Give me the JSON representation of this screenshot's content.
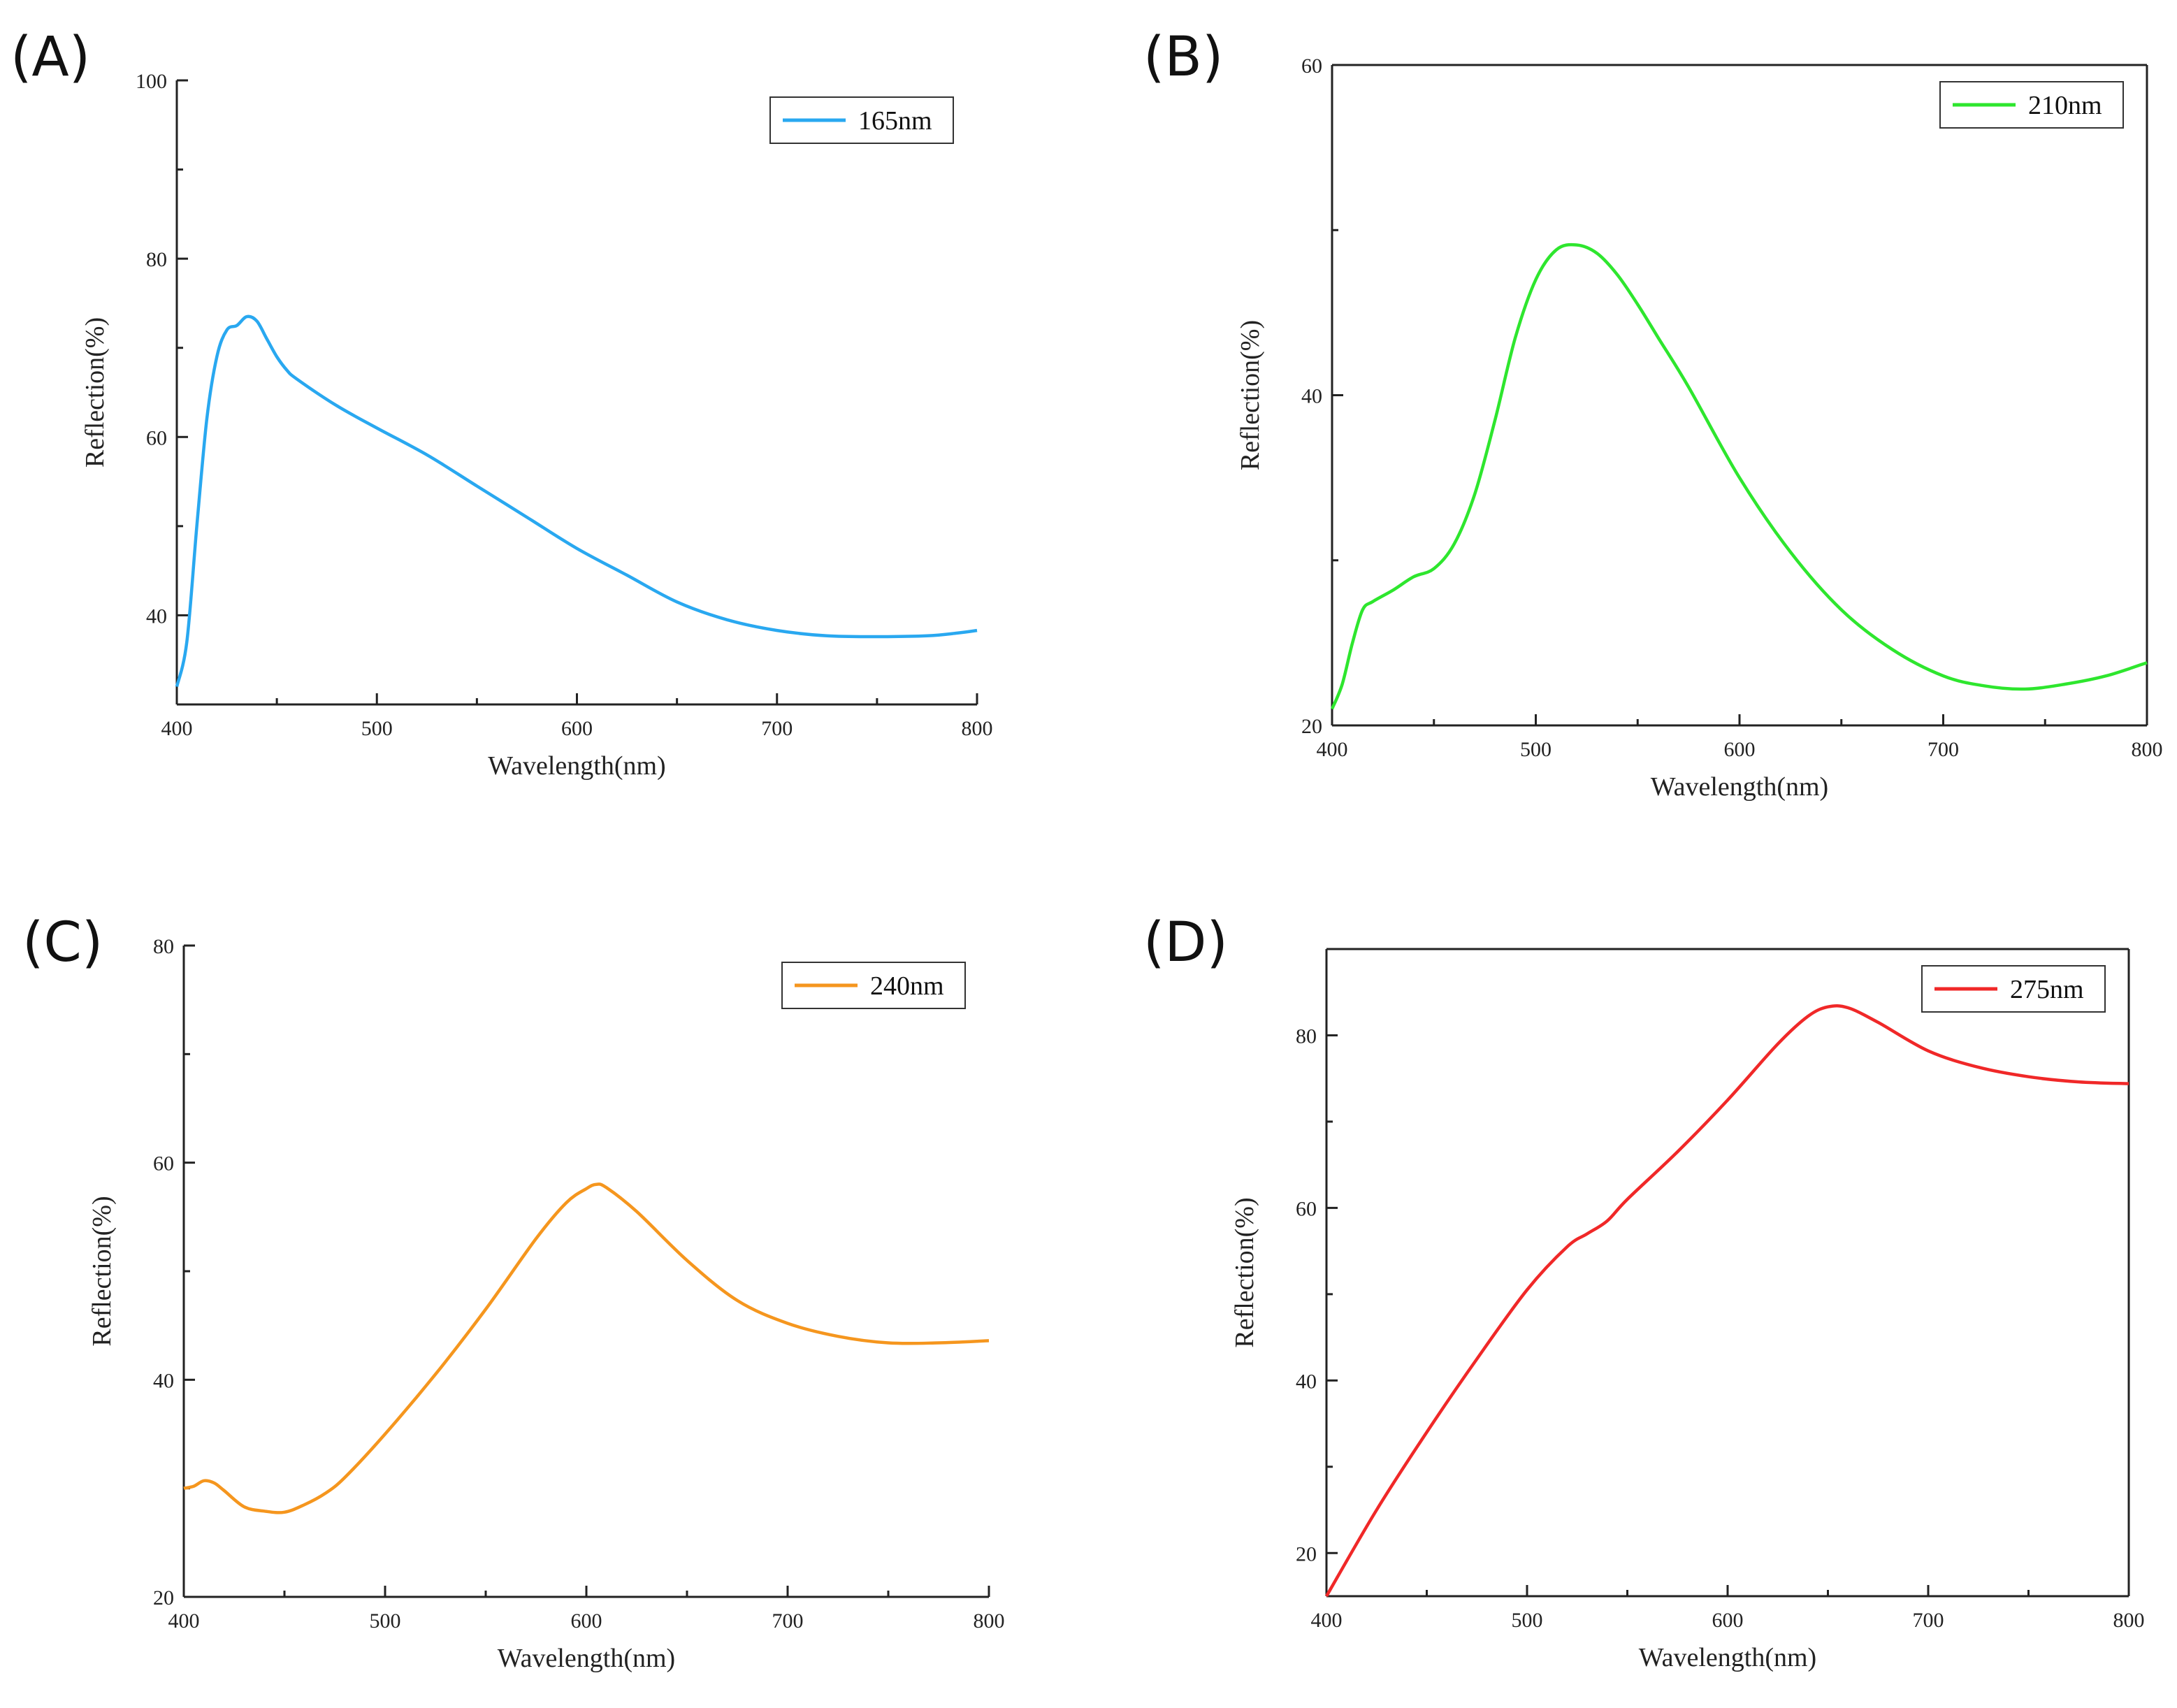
{
  "chart_data": [
    {
      "id": "A",
      "panel_label": "(A)",
      "type": "line",
      "xlabel": "Wavelength(nm)",
      "ylabel": "Reflection(%)",
      "xlim": [
        400,
        800
      ],
      "ylim": [
        30,
        100
      ],
      "xticks": [
        400,
        500,
        600,
        700,
        800
      ],
      "yticks": [
        40,
        60,
        80,
        100
      ],
      "legend_position": "top-right",
      "series": [
        {
          "name": "165nm",
          "color": "#29a8f0",
          "x": [
            400,
            405,
            410,
            415,
            420,
            425,
            430,
            435,
            440,
            445,
            450,
            455,
            460,
            480,
            500,
            525,
            550,
            575,
            600,
            625,
            650,
            675,
            700,
            725,
            750,
            775,
            790,
            800
          ],
          "y": [
            32,
            37,
            50,
            62,
            69,
            72,
            72.5,
            73.5,
            73,
            71,
            69,
            67.5,
            66.5,
            63.5,
            61,
            58,
            54.5,
            51,
            47.5,
            44.5,
            41.5,
            39.5,
            38.3,
            37.7,
            37.6,
            37.7,
            38,
            38.3
          ]
        }
      ]
    },
    {
      "id": "B",
      "panel_label": "(B)",
      "type": "line",
      "xlabel": "Wavelength(nm)",
      "ylabel": "Reflection(%)",
      "xlim": [
        400,
        800
      ],
      "ylim": [
        20,
        60
      ],
      "xticks": [
        400,
        500,
        600,
        700,
        800
      ],
      "yticks": [
        20,
        40,
        60
      ],
      "legend_position": "top-right",
      "series": [
        {
          "name": "210nm",
          "color": "#2ee62e",
          "x": [
            400,
            405,
            410,
            415,
            420,
            430,
            440,
            450,
            460,
            470,
            480,
            490,
            500,
            510,
            520,
            530,
            540,
            550,
            560,
            575,
            600,
            625,
            650,
            675,
            700,
            720,
            740,
            760,
            780,
            800
          ],
          "y": [
            21,
            22.5,
            25,
            27,
            27.5,
            28.2,
            29,
            29.5,
            31,
            34,
            38.5,
            43.5,
            47,
            48.8,
            49.1,
            48.6,
            47.3,
            45.5,
            43.5,
            40.5,
            35,
            30.5,
            27,
            24.6,
            23,
            22.4,
            22.2,
            22.5,
            23,
            23.8
          ]
        }
      ]
    },
    {
      "id": "C",
      "panel_label": "(C)",
      "type": "line",
      "xlabel": "Wavelength(nm)",
      "ylabel": "Reflection(%)",
      "xlim": [
        400,
        800
      ],
      "ylim": [
        20,
        80
      ],
      "xticks": [
        400,
        500,
        600,
        700,
        800
      ],
      "yticks": [
        20,
        40,
        60,
        80
      ],
      "legend_position": "top-right",
      "series": [
        {
          "name": "240nm",
          "color": "#f5961e",
          "x": [
            400,
            405,
            410,
            415,
            420,
            430,
            440,
            450,
            460,
            470,
            480,
            500,
            525,
            550,
            575,
            590,
            600,
            605,
            610,
            625,
            650,
            675,
            700,
            725,
            750,
            775,
            800
          ],
          "y": [
            30,
            30.2,
            30.7,
            30.5,
            29.8,
            28.3,
            27.9,
            27.8,
            28.5,
            29.5,
            31,
            35,
            40.5,
            46.5,
            53,
            56.3,
            57.6,
            58,
            57.7,
            55.5,
            51,
            47.3,
            45.2,
            44,
            43.4,
            43.4,
            43.6
          ]
        }
      ]
    },
    {
      "id": "D",
      "panel_label": "(D)",
      "type": "line",
      "xlabel": "Wavelength(nm)",
      "ylabel": "Reflection(%)",
      "xlim": [
        400,
        800
      ],
      "ylim": [
        15,
        90
      ],
      "xticks": [
        400,
        500,
        600,
        700,
        800
      ],
      "yticks": [
        20,
        40,
        60,
        80
      ],
      "legend_position": "top-right",
      "series": [
        {
          "name": "275nm",
          "color": "#f02828",
          "x": [
            400,
            425,
            450,
            475,
            500,
            520,
            530,
            540,
            550,
            575,
            600,
            625,
            640,
            650,
            660,
            675,
            700,
            725,
            750,
            775,
            800
          ],
          "y": [
            15,
            25,
            34,
            42.5,
            50.5,
            55.5,
            57,
            58.5,
            61,
            66.5,
            72.5,
            79,
            82.2,
            83.3,
            83.2,
            81.5,
            78.2,
            76.3,
            75.2,
            74.6,
            74.4
          ]
        }
      ]
    }
  ]
}
